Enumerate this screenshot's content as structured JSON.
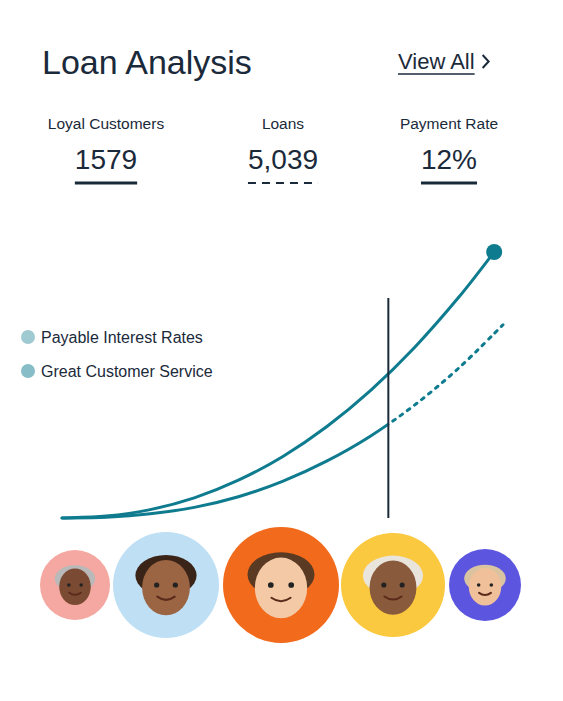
{
  "header": {
    "title": "Loan Analysis",
    "link": "View All"
  },
  "stats": [
    {
      "label": "Loyal Customers",
      "value": 1579
    },
    {
      "label": "Loans",
      "value": 5039,
      "value_label": "5,039",
      "line_style": "dashed"
    },
    {
      "label": "Payment Rate",
      "value": 12,
      "value_label": "12%"
    }
  ],
  "chart_data": {
    "type": "line",
    "xlim": [
      0,
      10
    ],
    "ylim": [
      0,
      100
    ],
    "tick_labels": false,
    "grid": false,
    "legend": "left",
    "cursor_x": 7.4,
    "series": [
      {
        "name": "Payable Interest Rates",
        "color": "#0f7b8f",
        "x": [
          0,
          1,
          2,
          3,
          4,
          5,
          6,
          7,
          8,
          9,
          9.8
        ],
        "values": [
          0,
          0.7,
          3,
          7.2,
          13.5,
          21.9,
          32.6,
          45.6,
          61,
          78.9,
          95
        ],
        "line_style": "solid",
        "marker": "end-dot"
      },
      {
        "name": "Great Customer Service",
        "color": "#0f7b8f",
        "x": [
          0,
          1,
          2,
          3,
          4,
          5,
          6,
          7,
          8,
          9,
          10
        ],
        "values": [
          0,
          0.3,
          1.5,
          3.8,
          7.6,
          13.1,
          20.3,
          29.3,
          40.4,
          53.6,
          69
        ],
        "line_style": "dotted"
      }
    ]
  }
}
